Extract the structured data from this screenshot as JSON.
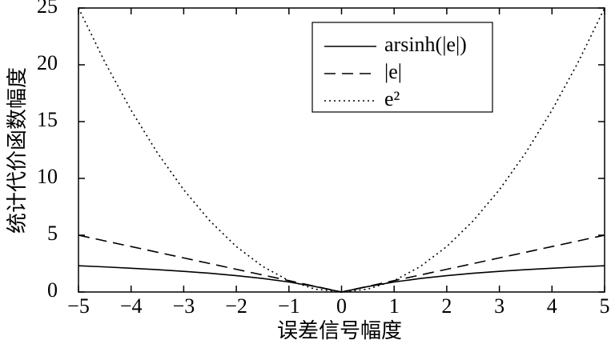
{
  "chart_data": {
    "type": "line",
    "xlabel": "误差信号幅度",
    "ylabel": "统计代价函数幅度",
    "x": [
      -5,
      -4.5,
      -4,
      -3.5,
      -3,
      -2.5,
      -2,
      -1.5,
      -1,
      -0.5,
      0,
      0.5,
      1,
      1.5,
      2,
      2.5,
      3,
      3.5,
      4,
      4.5,
      5
    ],
    "series": [
      {
        "name": "arsinh(|e|)",
        "color": "#000000",
        "dash": "solid",
        "values": [
          2.31,
          2.21,
          2.09,
          1.97,
          1.82,
          1.65,
          1.44,
          1.19,
          0.88,
          0.48,
          0,
          0.48,
          0.88,
          1.19,
          1.44,
          1.65,
          1.82,
          1.97,
          2.09,
          2.21,
          2.31
        ]
      },
      {
        "name": "|e|",
        "color": "#000000",
        "dash": "dashed",
        "values": [
          5,
          4.5,
          4,
          3.5,
          3,
          2.5,
          2,
          1.5,
          1,
          0.5,
          0,
          0.5,
          1,
          1.5,
          2,
          2.5,
          3,
          3.5,
          4,
          4.5,
          5
        ]
      },
      {
        "name": "e²",
        "color": "#000000",
        "dash": "dotted",
        "values": [
          25,
          20.25,
          16,
          12.25,
          9,
          6.25,
          4,
          2.25,
          1,
          0.25,
          0,
          0.25,
          1,
          2.25,
          4,
          6.25,
          9,
          12.25,
          16,
          20.25,
          25
        ]
      }
    ],
    "xlim": [
      -5,
      5
    ],
    "xticks": [
      {
        "value": -5,
        "label": "−5"
      },
      {
        "value": -4,
        "label": "−4"
      },
      {
        "value": -3,
        "label": "−3"
      },
      {
        "value": -2,
        "label": "−2"
      },
      {
        "value": -1,
        "label": "−1"
      },
      0,
      1,
      2,
      3,
      4,
      5
    ],
    "ylim": [
      0,
      25
    ],
    "yticks": [
      0,
      5,
      10,
      15,
      20,
      25
    ],
    "grid": false,
    "legend": "upper right"
  }
}
